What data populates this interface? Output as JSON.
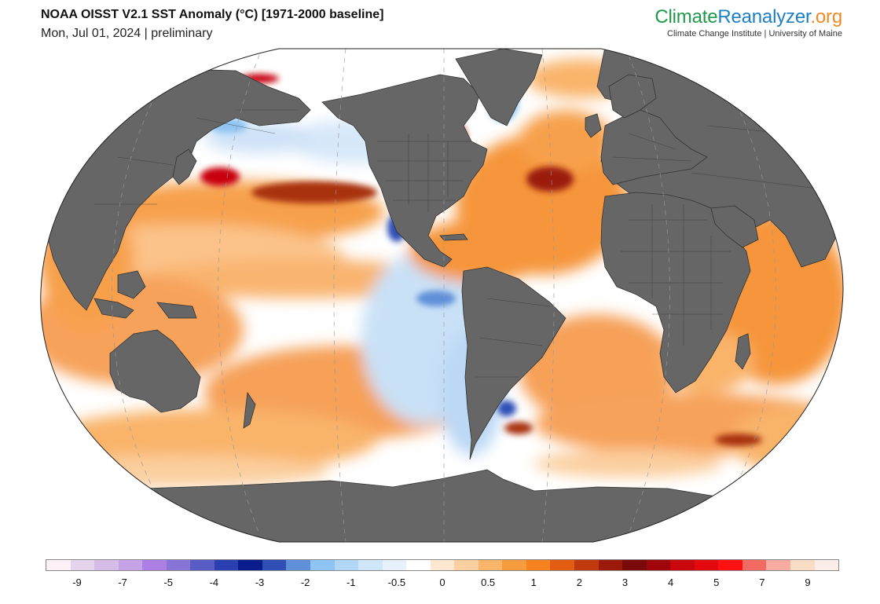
{
  "header": {
    "title": "NOAA OISST V2.1 SST Anomaly (°C) [1971-2000 baseline]",
    "subtitle": "Mon, Jul 01, 2024 | preliminary"
  },
  "brand": {
    "name_part1": "Climate",
    "name_part2": "Reanalyzer",
    "name_part3": ".org",
    "affiliation": "Climate Change Institute | University of Maine"
  },
  "map": {
    "projection": "Robinson-like global (Pacific-centered)",
    "land_color": "#666666",
    "ocean_base_color": "#ffffff",
    "icons": [
      "world-map-graphic"
    ]
  },
  "colorbar": {
    "colors": [
      "#fdf0f6",
      "#e6d3ec",
      "#d6bde8",
      "#c5a3e6",
      "#ab7fe3",
      "#8873d7",
      "#5a5cc6",
      "#2a3fb0",
      "#0a1d8c",
      "#2f4fb5",
      "#5f8fd9",
      "#8ec4f3",
      "#b2d6f5",
      "#cfe5f8",
      "#e6f1fb",
      "#ffffff",
      "#fde7d0",
      "#fbcf9f",
      "#f9b66a",
      "#f79c3d",
      "#f5821f",
      "#e25c12",
      "#c13a0e",
      "#9b1a0a",
      "#7a0a0a",
      "#a0050a",
      "#c8060c",
      "#e3090f",
      "#fe1111",
      "#f26a62",
      "#f8aba0",
      "#f7dcc6",
      "#fbeeea"
    ],
    "tick_labels": [
      "-9",
      "-7",
      "-5",
      "-4",
      "-3",
      "-2",
      "-1",
      "-0.5",
      "0",
      "0.5",
      "1",
      "2",
      "3",
      "4",
      "5",
      "7",
      "9"
    ]
  }
}
